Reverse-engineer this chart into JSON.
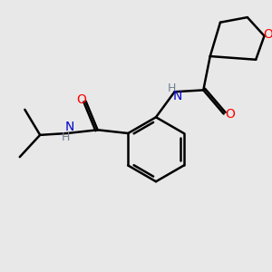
{
  "bg_color": "#e8e8e8",
  "bond_color": "#000000",
  "bond_width": 1.8,
  "atom_colors": {
    "O": "#ff0000",
    "N": "#0000cd",
    "H": "#708090",
    "C": "#000000"
  },
  "font_size": 9
}
